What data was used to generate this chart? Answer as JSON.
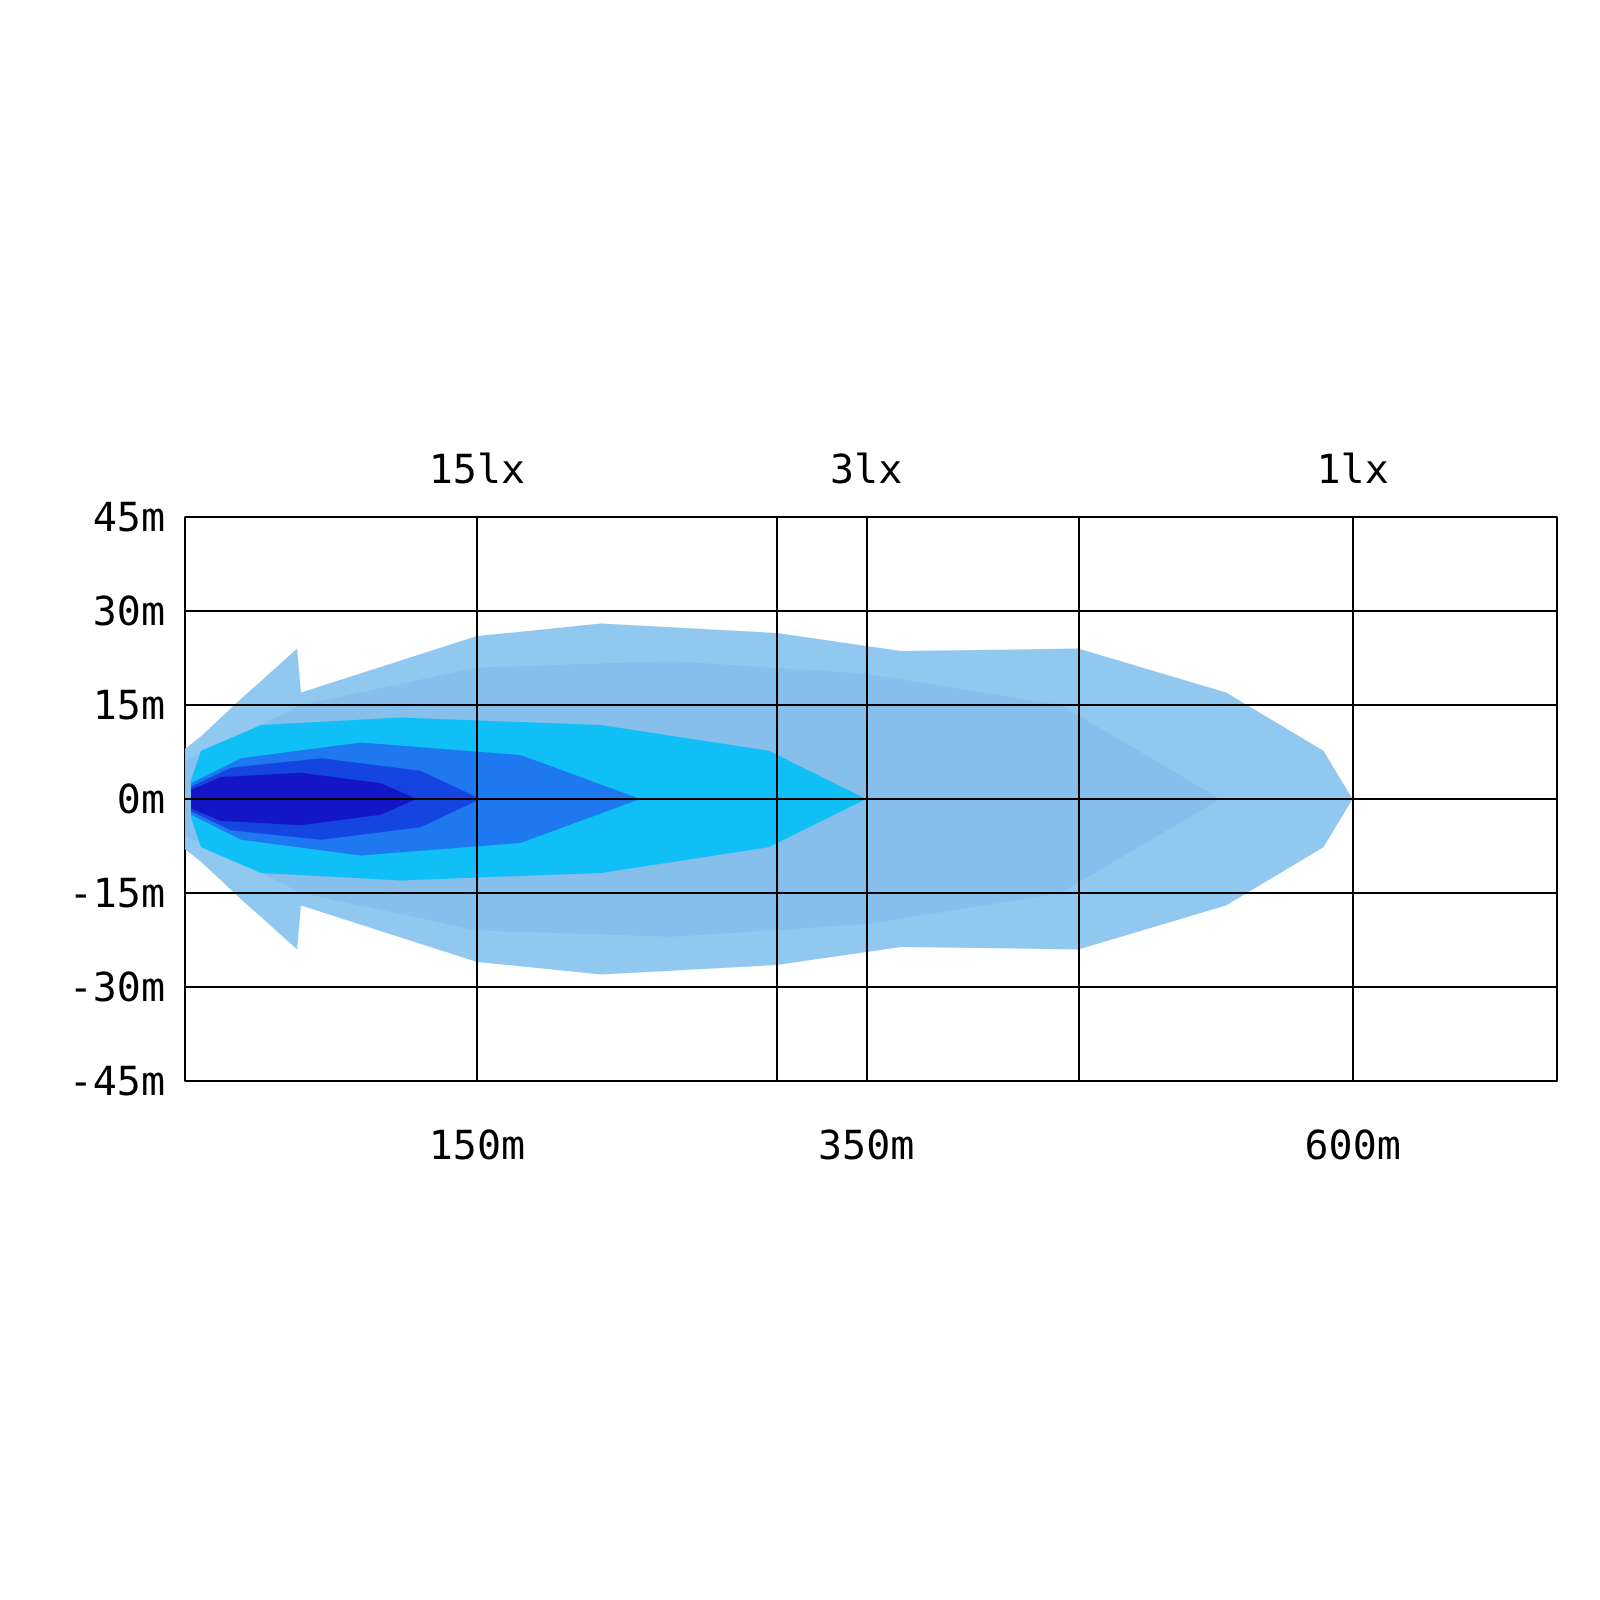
{
  "chart_data": {
    "type": "area",
    "xlim": [
      0,
      705
    ],
    "ylim": [
      -45,
      45
    ],
    "xticks": [
      {
        "value": 150,
        "label": "150m"
      },
      {
        "value": 304,
        "label": null
      },
      {
        "value": 350,
        "label": "350m"
      },
      {
        "value": 459,
        "label": null
      },
      {
        "value": 600,
        "label": "600m"
      }
    ],
    "yticks": [
      {
        "value": 45,
        "label": "45m"
      },
      {
        "value": 30,
        "label": "30m"
      },
      {
        "value": 15,
        "label": "15m"
      },
      {
        "value": 0,
        "label": "0m"
      },
      {
        "value": -15,
        "label": "-15m"
      },
      {
        "value": -30,
        "label": "-30m"
      },
      {
        "value": -45,
        "label": "-45m"
      }
    ],
    "grid": true,
    "annotations": [
      "15lx",
      "3lx",
      "1lx"
    ],
    "series": [
      {
        "color": "#90c8f0",
        "x": [
          0,
          8.2,
          28.8,
          57.6,
          59.6,
          150,
          213.8,
          304,
          368,
          459,
          535,
          585,
          600
        ],
        "values": [
          8,
          10,
          16,
          24,
          17,
          26,
          28,
          26.5,
          23.6,
          24,
          17,
          7.7,
          0
        ]
      },
      {
        "color": "#90c8f0",
        "x": [
          0,
          8.2,
          28.8,
          57.6,
          59.6,
          150,
          213.8,
          304,
          368,
          459,
          535,
          585,
          600
        ],
        "values": [
          -8,
          -10,
          -16,
          -24,
          -17,
          -26,
          -28,
          -26.5,
          -23.6,
          -24,
          -17,
          -7.7,
          0
        ]
      },
      {
        "color": "#86bfec",
        "x": [
          0,
          60,
          150,
          250,
          350,
          450,
          532
        ],
        "values": [
          6,
          15,
          21,
          22,
          20,
          15,
          0
        ]
      },
      {
        "color": "#86bfec",
        "x": [
          0,
          60,
          150,
          250,
          350,
          450,
          532
        ],
        "values": [
          -6,
          -15,
          -21,
          -22,
          -20,
          -15,
          0
        ]
      },
      {
        "color": "#10bff5",
        "x": [
          3.1,
          8.2,
          39,
          111,
          213.8,
          300,
          350
        ],
        "values": [
          3,
          7.7,
          11.8,
          13,
          11.8,
          7.7,
          0
        ]
      },
      {
        "color": "#10bff5",
        "x": [
          3.1,
          8.2,
          39,
          111,
          213.8,
          300,
          350
        ],
        "values": [
          -3,
          -7.7,
          -11.8,
          -13,
          -11.8,
          -7.7,
          0
        ]
      },
      {
        "color": "#1e78f0",
        "x": [
          3.1,
          28.8,
          90.4,
          172.7,
          234
        ],
        "values": [
          2.5,
          6.5,
          9,
          7,
          0
        ]
      },
      {
        "color": "#1e78f0",
        "x": [
          3.1,
          28.8,
          90.4,
          172.7,
          234
        ],
        "values": [
          -2.5,
          -6.5,
          -9,
          -7,
          0
        ]
      },
      {
        "color": "#1545e0",
        "x": [
          3.1,
          23.6,
          70,
          121,
          152
        ],
        "values": [
          2,
          5,
          6.5,
          4.5,
          0
        ]
      },
      {
        "color": "#1545e0",
        "x": [
          3.1,
          23.6,
          70,
          121,
          152
        ],
        "values": [
          -2,
          -5,
          -6.5,
          -4.5,
          0
        ]
      },
      {
        "color": "#1515c8",
        "x": [
          3.1,
          18.5,
          59.6,
          100.7,
          119
        ],
        "values": [
          1.5,
          3.5,
          4.2,
          2.5,
          0
        ]
      },
      {
        "color": "#1515c8",
        "x": [
          3.1,
          18.5,
          59.6,
          100.7,
          119
        ],
        "values": [
          -1.5,
          -3.5,
          -4.2,
          -2.5,
          0
        ]
      }
    ]
  }
}
